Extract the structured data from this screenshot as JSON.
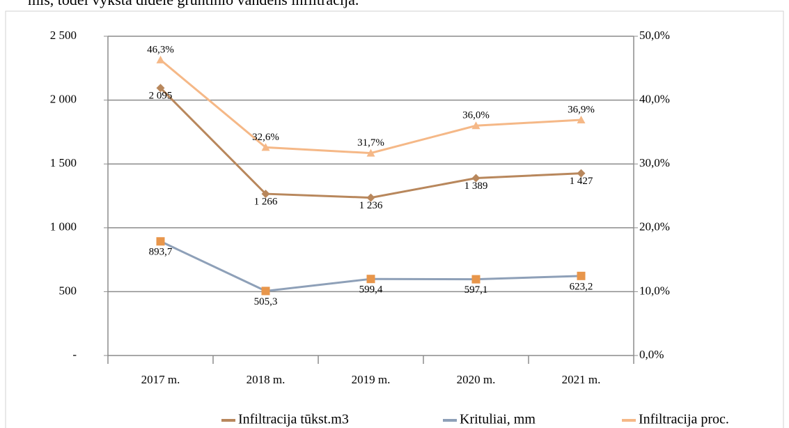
{
  "caption": "mis, todėl vyksta didelė gruntinio vandens infiltracija.",
  "chart_data": {
    "type": "line",
    "categories": [
      "2017 m.",
      "2018 m.",
      "2019 m.",
      "2020 m.",
      "2021 m."
    ],
    "ylim": [
      0,
      2500
    ],
    "yticks": [
      {
        "value": 0,
        "label": "-"
      },
      500,
      {
        "value": 1000,
        "label": "1 000"
      },
      {
        "value": 1500,
        "label": "1 500"
      },
      {
        "value": 2000,
        "label": "2 000"
      },
      {
        "value": 2500,
        "label": "2 500"
      }
    ],
    "y2lim": [
      0,
      50
    ],
    "y2ticks": [
      {
        "value": 0,
        "label": "0,0%"
      },
      {
        "value": 10,
        "label": "10,0%"
      },
      {
        "value": 20,
        "label": "20,0%"
      },
      {
        "value": 30,
        "label": "30,0%"
      },
      {
        "value": 40,
        "label": "40,0%"
      },
      {
        "value": 50,
        "label": "50,0%"
      }
    ],
    "grid": true,
    "legend": "bottom",
    "series": [
      {
        "name": "Infiltracija tūkst.m3",
        "color": "#b8875c",
        "marker": "diamond",
        "marker_color": "#b8875c",
        "values": [
          2095,
          1266,
          1236,
          1389,
          1427
        ],
        "value_labels": [
          "2 095",
          "1 266",
          "1 236",
          "1 389",
          "1 427"
        ]
      },
      {
        "name": "Krituliai, mm",
        "color": "#8ea0b8",
        "marker": "square",
        "marker_color": "#e8964b",
        "values": [
          893.7,
          505.3,
          599.4,
          597.1,
          623.2
        ],
        "value_labels": [
          "893,7",
          "505,3",
          "599,4",
          "597,1",
          "623,2"
        ]
      },
      {
        "name": "Infiltracija proc.",
        "color": "#f5b887",
        "marker": "triangle",
        "marker_color": "#f5b887",
        "axis": "y2",
        "values": [
          46.3,
          32.6,
          31.7,
          36.0,
          36.9
        ],
        "value_labels": [
          "46,3%",
          "32,6%",
          "31,7%",
          "36,0%",
          "36,9%"
        ]
      }
    ]
  }
}
